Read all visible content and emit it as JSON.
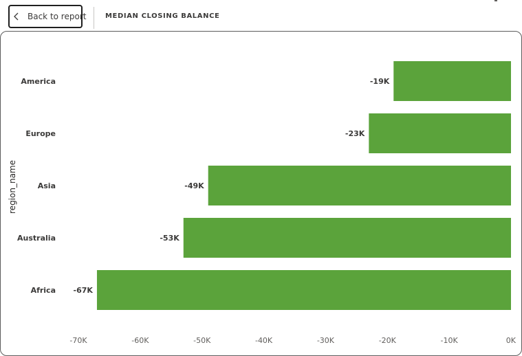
{
  "header": {
    "back_label": "Back to report",
    "title": "MEDIAN CLOSING BALANCE"
  },
  "colors": {
    "bar": "#5ba33b",
    "text": "#3b3a39",
    "muted": "#605e5c"
  },
  "icons": {
    "back": "chevron-left-icon"
  },
  "chart_data": {
    "type": "bar",
    "orientation": "horizontal",
    "categories": [
      "America",
      "Europe",
      "Asia",
      "Australia",
      "Africa"
    ],
    "values": [
      -19000,
      -23000,
      -49000,
      -53000,
      -67000
    ],
    "data_labels": [
      "-19K",
      "-23K",
      "-49K",
      "-53K",
      "-67K"
    ],
    "ylabel": "region_name",
    "xlabel": "",
    "xlim": [
      -70000,
      0
    ],
    "x_ticks": [
      -70000,
      -60000,
      -50000,
      -40000,
      -30000,
      -20000,
      -10000,
      0
    ],
    "x_tick_labels": [
      "-70K",
      "-60K",
      "-50K",
      "-40K",
      "-30K",
      "-20K",
      "-10K",
      "0K"
    ],
    "grid": false,
    "legend": "none"
  }
}
